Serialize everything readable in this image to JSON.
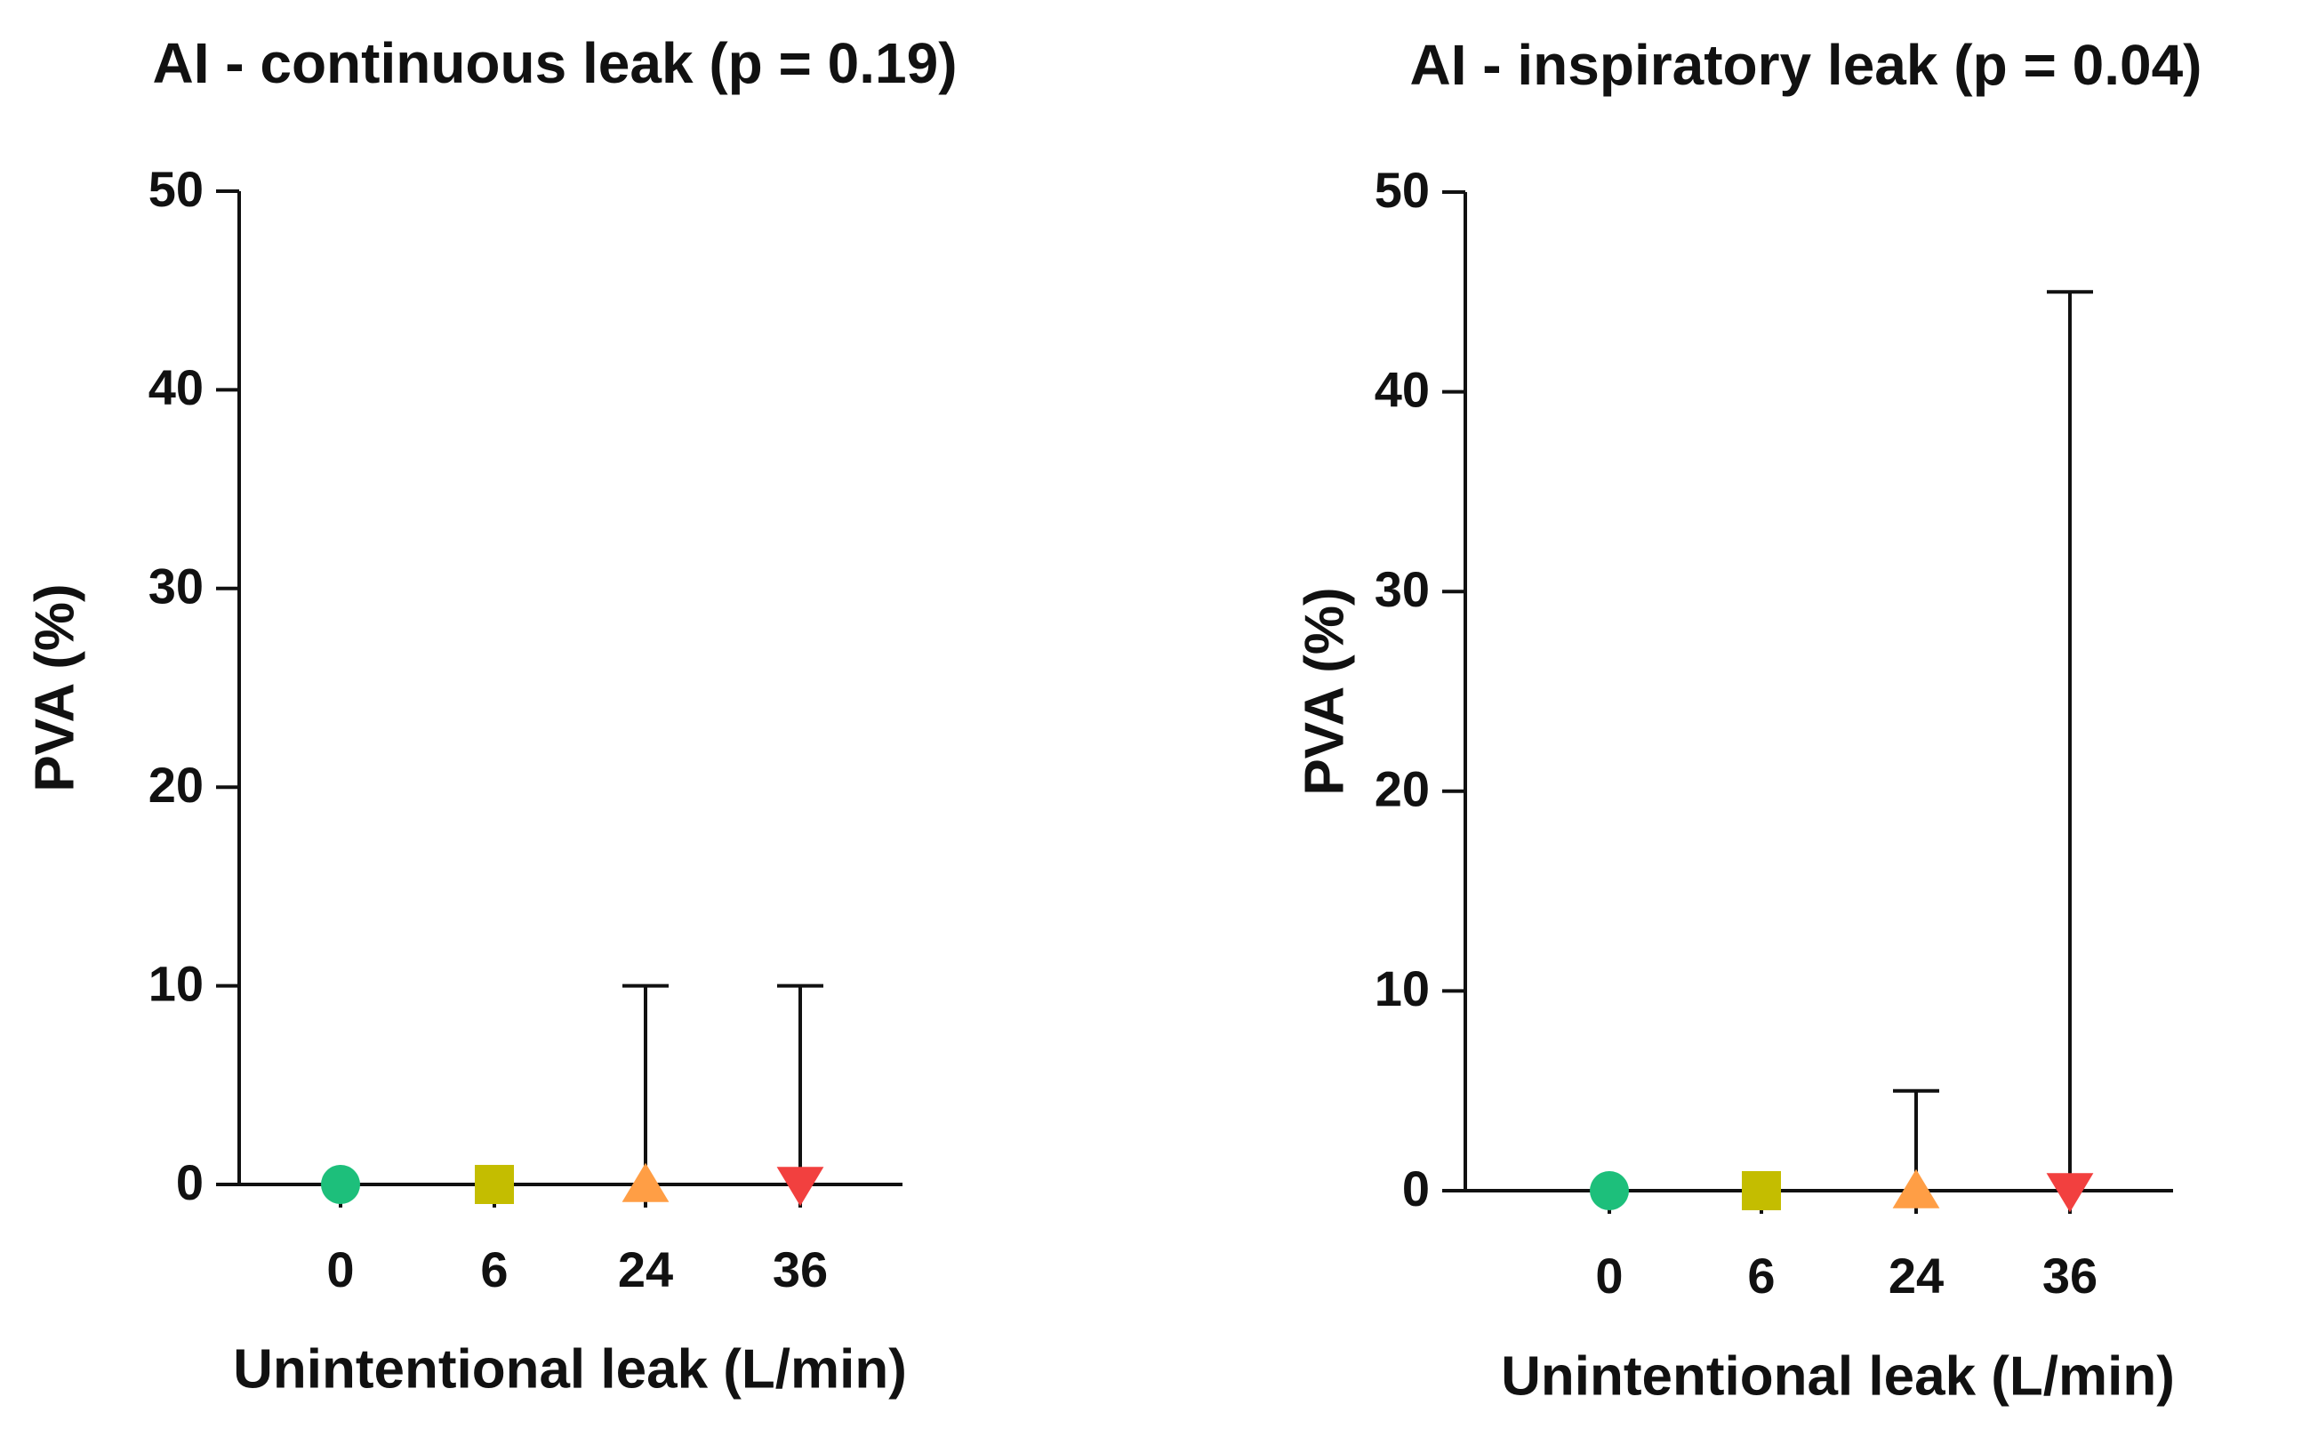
{
  "chart_data": [
    {
      "type": "scatter-errorbar",
      "title": "AI - continuous leak (p = 0.19)",
      "x_label": "Unintentional leak (L/min)",
      "y_label": "PVA (%)",
      "categories": [
        "0",
        "6",
        "24",
        "36"
      ],
      "values": [
        0,
        0,
        0,
        0
      ],
      "upper": [
        0,
        0,
        10,
        10
      ],
      "colors": [
        "#1dbf7b",
        "#c4bd00",
        "#ff9e45",
        "#f2403f"
      ],
      "markers": [
        "circle",
        "square",
        "triangle-up",
        "triangle-down"
      ],
      "ylim": [
        0,
        50
      ],
      "yticks": [
        0,
        10,
        20,
        30,
        40,
        50
      ]
    },
    {
      "type": "scatter-errorbar",
      "title": "AI - inspiratory leak (p = 0.04)",
      "x_label": "Unintentional leak (L/min)",
      "y_label": "PVA (%)",
      "categories": [
        "0",
        "6",
        "24",
        "36"
      ],
      "values": [
        0,
        0,
        0,
        0
      ],
      "upper": [
        0,
        0,
        5,
        45
      ],
      "colors": [
        "#1dbf7b",
        "#c4bd00",
        "#ff9e45",
        "#f2403f"
      ],
      "markers": [
        "circle",
        "square",
        "triangle-up",
        "triangle-down"
      ],
      "ylim": [
        0,
        50
      ],
      "yticks": [
        0,
        10,
        20,
        30,
        40,
        50
      ]
    }
  ]
}
